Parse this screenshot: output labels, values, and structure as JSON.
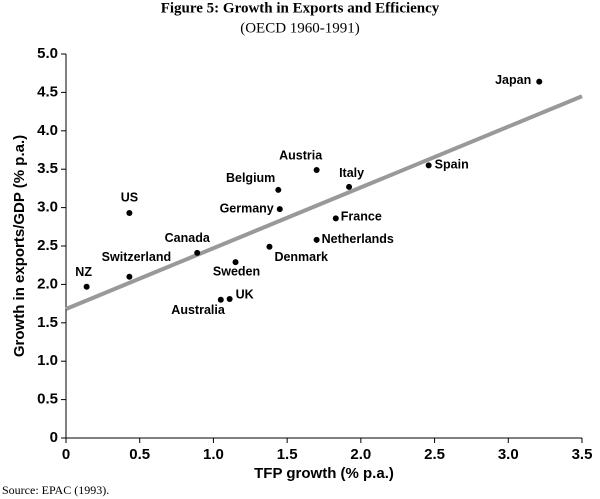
{
  "chart_data": {
    "type": "scatter",
    "title": "Figure 5: Growth in Exports and Efficiency",
    "subtitle": "(OECD 1960-1991)",
    "x_label": "TFP growth (% p.a.)",
    "y_label": "Growth in exports/GDP (% p.a.)",
    "source": "Source:  EPAC (1993).",
    "labels": [
      "Japan",
      "Spain",
      "Italy",
      "Austria",
      "Belgium",
      "Germany",
      "France",
      "Netherlands",
      "Denmark",
      "Sweden",
      "Canada",
      "US",
      "Switzerland",
      "NZ",
      "UK",
      "Australia"
    ],
    "x": [
      3.21,
      2.46,
      1.92,
      1.7,
      1.44,
      1.45,
      1.83,
      1.7,
      1.38,
      1.15,
      0.89,
      0.43,
      0.43,
      0.14,
      1.11,
      1.05
    ],
    "y": [
      4.64,
      3.55,
      3.27,
      3.49,
      3.23,
      2.98,
      2.86,
      2.58,
      2.49,
      2.29,
      2.41,
      2.93,
      2.1,
      1.97,
      1.81,
      1.8
    ],
    "color": "#000000",
    "trend_line": {
      "x": [
        0,
        3.5
      ],
      "y": [
        1.68,
        4.45
      ],
      "color": "#999999"
    },
    "xlim": [
      0,
      3.5
    ],
    "xticks": [
      0,
      0.5,
      {
        "value": 1.0,
        "label": "1.0"
      },
      1.5,
      {
        "value": 2.0,
        "label": "2.0"
      },
      2.5,
      {
        "value": 3.0,
        "label": "3.0"
      },
      3.5
    ],
    "ylim": [
      0,
      5
    ],
    "yticks": [
      0,
      0.5,
      {
        "value": 1.0,
        "label": "1.0"
      },
      1.5,
      {
        "value": 2.0,
        "label": "2.0"
      },
      2.5,
      {
        "value": 3.0,
        "label": "3.0"
      },
      3.5,
      {
        "value": 4.0,
        "label": "4.0"
      },
      4.5,
      {
        "value": 5.0,
        "label": "5.0"
      }
    ],
    "grid": false
  }
}
